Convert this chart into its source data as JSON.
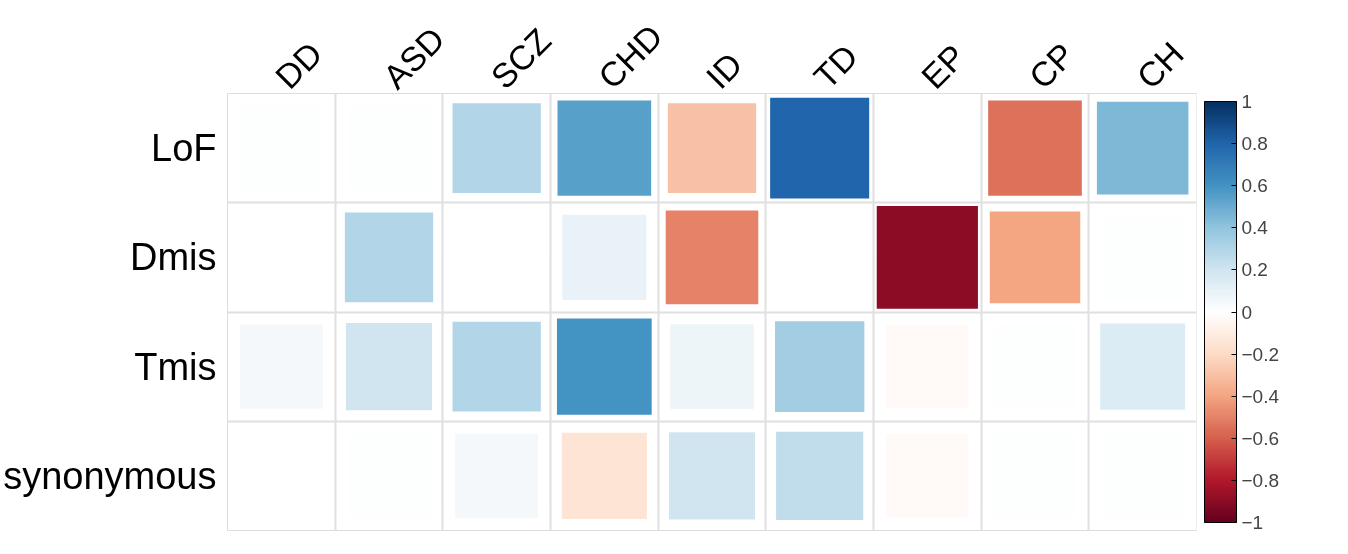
{
  "chart_data": {
    "type": "heatmap",
    "categories": [
      "DD",
      "ASD",
      "SCZ",
      "CHD",
      "ID",
      "TD",
      "EP",
      "CP",
      "CH"
    ],
    "y_categories": [
      "LoF",
      "Dmis",
      "Tmis",
      "synonymous"
    ],
    "cells": [
      [
        0.01,
        0.01,
        0.3,
        0.55,
        -0.3,
        0.8,
        0,
        -0.55,
        0.45
      ],
      [
        0,
        0.3,
        0,
        0.1,
        -0.5,
        0,
        -0.9,
        -0.4,
        0.01
      ],
      [
        0.05,
        0.2,
        0.3,
        0.6,
        0.08,
        0.35,
        -0.03,
        0.01,
        0.15
      ],
      [
        0,
        0.01,
        0.05,
        -0.15,
        0.2,
        0.25,
        -0.03,
        0.01,
        0.01
      ]
    ],
    "clim": [
      -1,
      1
    ],
    "cticks": [
      -1,
      -0.8,
      -0.6,
      -0.4,
      -0.2,
      0,
      0.2,
      0.4,
      0.6,
      0.8,
      1
    ],
    "grid": true
  }
}
